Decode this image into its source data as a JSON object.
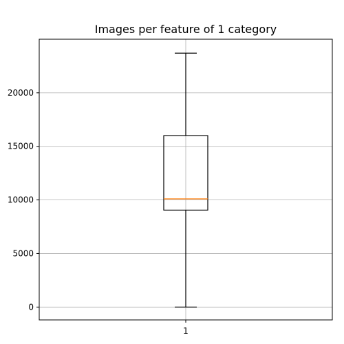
{
  "chart_data": {
    "type": "box",
    "title": "Images per feature of 1 category",
    "xlabel": "",
    "ylabel": "",
    "categories": [
      "1"
    ],
    "boxes": [
      {
        "label": "1",
        "whisker_low": 0,
        "q1": 9050,
        "median": 10100,
        "q3": 16000,
        "whisker_high": 23700
      }
    ],
    "ylim": [
      -1200,
      25000
    ],
    "yticks": [
      0,
      5000,
      10000,
      15000,
      20000
    ],
    "ytick_labels": [
      "0",
      "5000",
      "10000",
      "15000",
      "20000"
    ],
    "grid": true,
    "colors": {
      "box": "#000000",
      "median": "#ff7f0e",
      "grid": "#b0b0b0"
    }
  }
}
